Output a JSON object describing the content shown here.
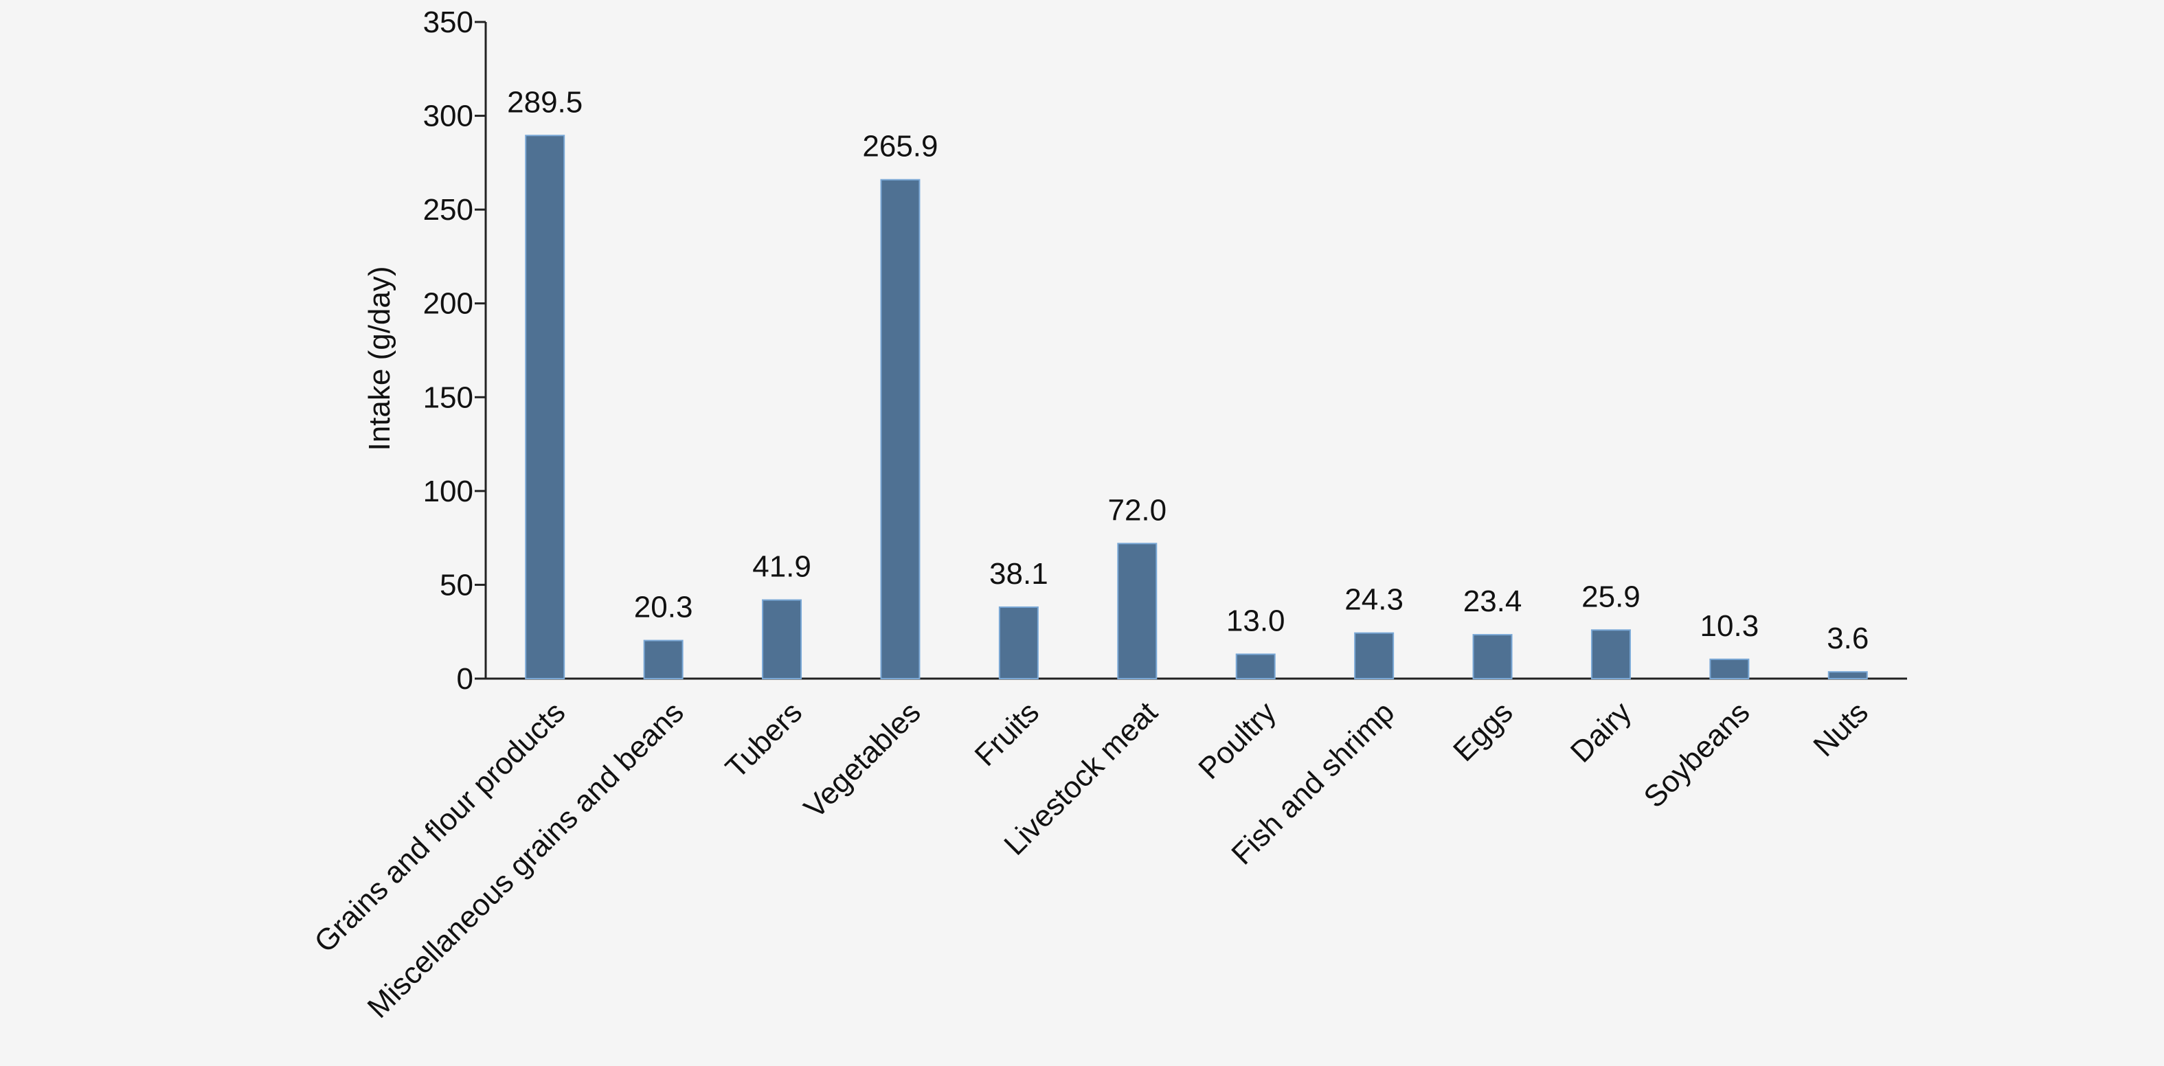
{
  "chart_data": {
    "type": "bar",
    "title": "",
    "xlabel": "",
    "ylabel": "Intake (g/day)",
    "ylim": [
      0,
      350
    ],
    "yticks": [
      0,
      50,
      100,
      150,
      200,
      250,
      300,
      350
    ],
    "grid": false,
    "categories": [
      "Grains and flour products",
      "Miscellaneous grains and beans",
      "Tubers",
      "Vegetables",
      "Fruits",
      "Livestock meat",
      "Poultry",
      "Fish and shrimp",
      "Eggs",
      "Dairy",
      "Soybeans",
      "Nuts"
    ],
    "values": [
      289.5,
      20.3,
      41.9,
      265.9,
      38.1,
      72.0,
      13.0,
      24.3,
      23.4,
      25.9,
      10.3,
      3.6
    ],
    "value_labels": [
      "289.5",
      "20.3",
      "41.9",
      "265.9",
      "38.1",
      "72.0",
      "13.0",
      "24.3",
      "23.4",
      "25.9",
      "10.3",
      "3.6"
    ],
    "colors": {
      "bar": "#4f7193",
      "bar_edge": "#7aa8d6",
      "axis": "#222222",
      "background": "#f5f5f5"
    }
  }
}
